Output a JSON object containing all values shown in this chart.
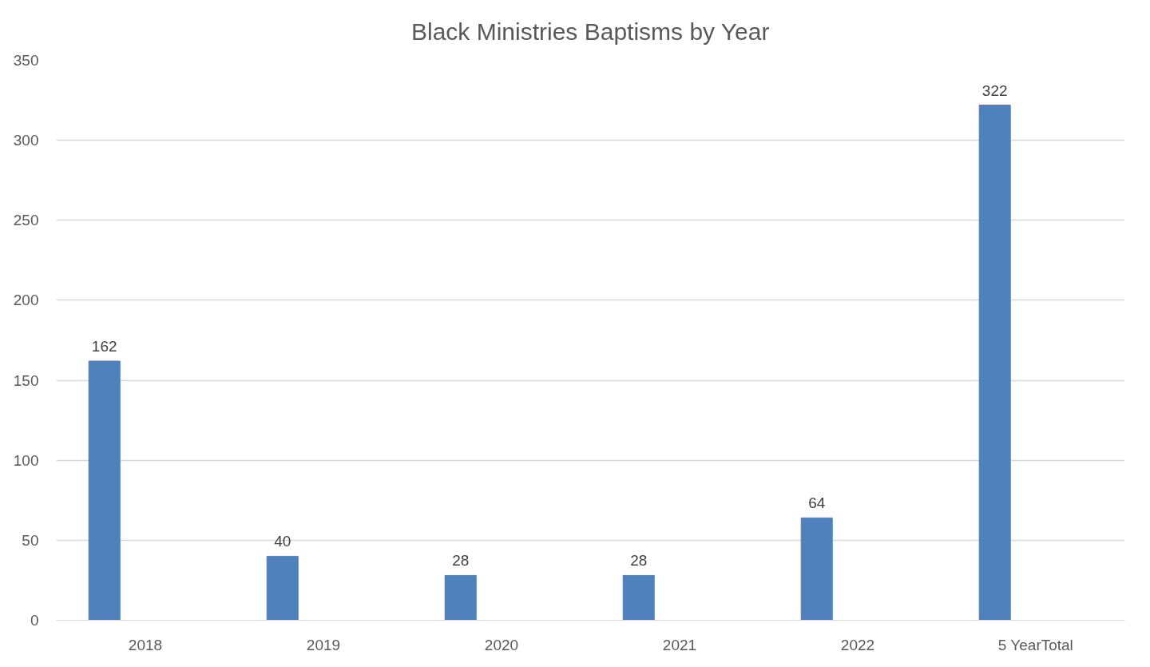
{
  "chart_data": {
    "type": "bar",
    "title": "Black Ministries Baptisms by Year",
    "categories": [
      "2018",
      "2019",
      "2020",
      "2021",
      "2022",
      "5 YearTotal"
    ],
    "values": [
      162,
      40,
      28,
      28,
      64,
      322
    ],
    "color": "#4f81bd",
    "ylim": [
      0,
      350
    ],
    "yticks": [
      0,
      50,
      100,
      150,
      200,
      250,
      300,
      350
    ],
    "grid": "y",
    "data_labels": true
  }
}
